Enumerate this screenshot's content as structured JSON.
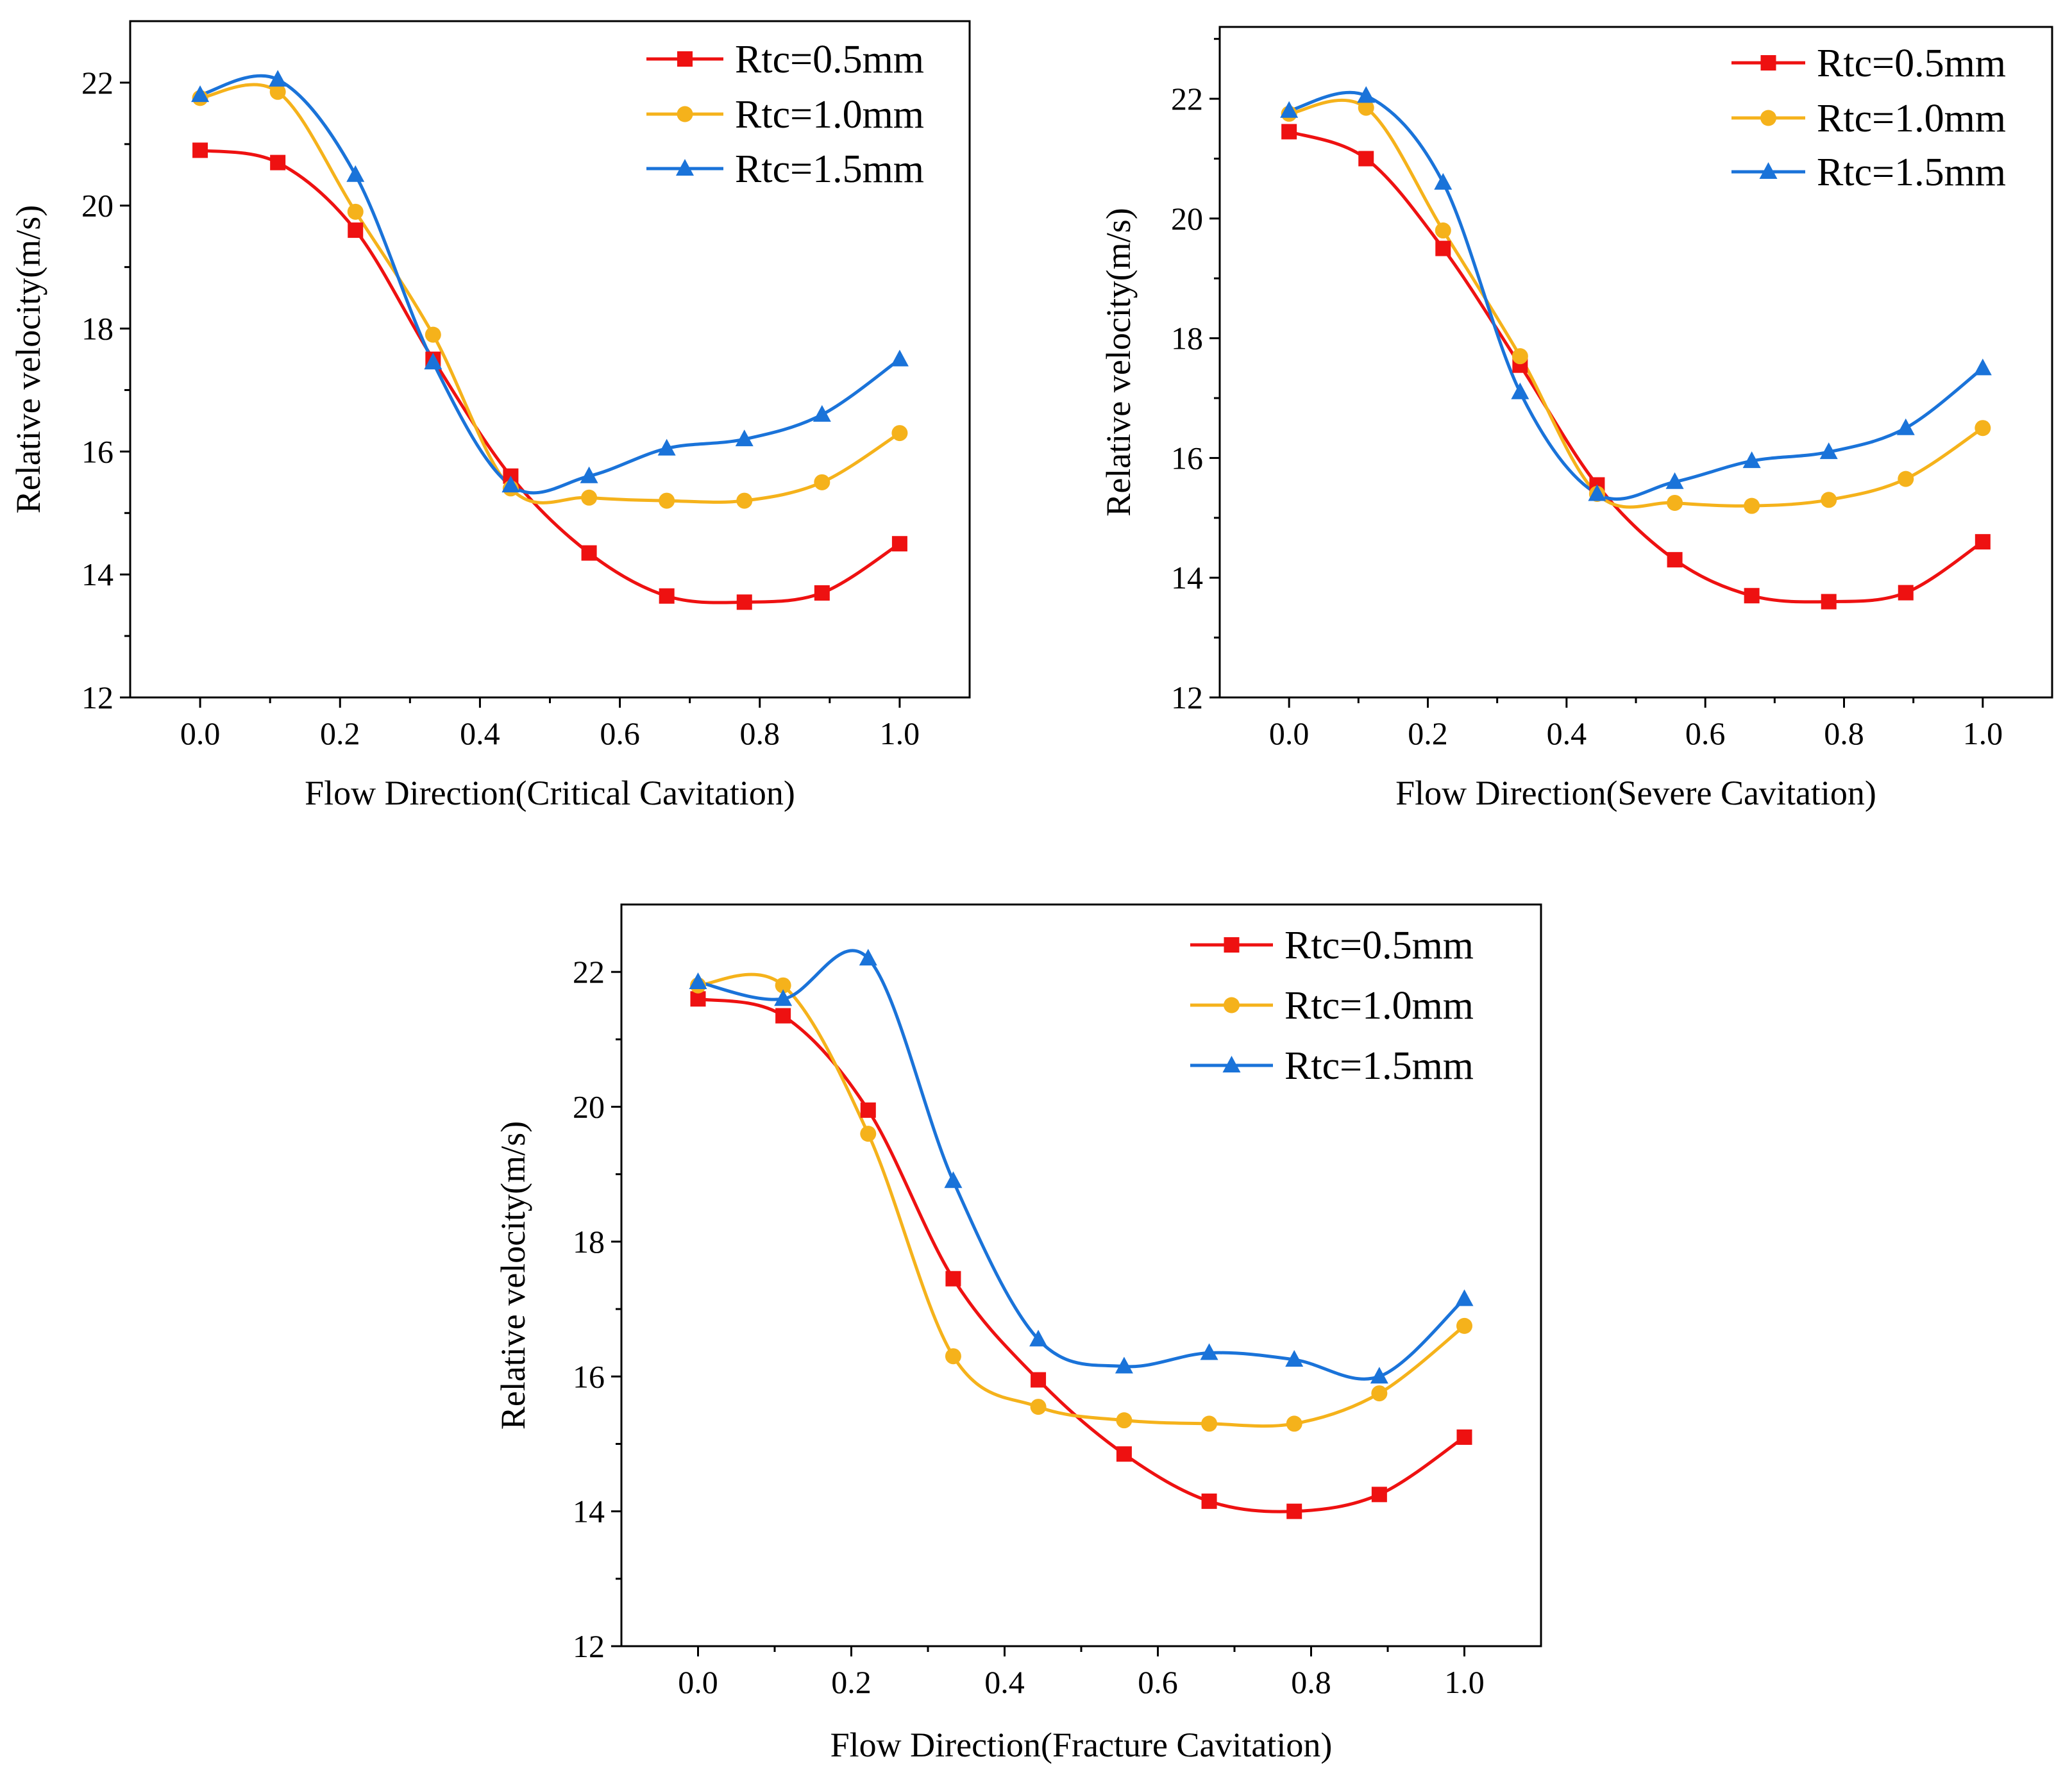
{
  "colors": {
    "Rtc=0.5mm": "#ee1111",
    "Rtc=1.0mm": "#f5b21b",
    "Rtc=1.5mm": "#1a73d9"
  },
  "markers": {
    "Rtc=0.5mm": "square",
    "Rtc=1.0mm": "circle",
    "Rtc=1.5mm": "triangle"
  },
  "chart_data": [
    {
      "type": "line",
      "title": "",
      "xlabel": "Flow Direction(Critical Cavitation)",
      "ylabel": "Relative velocity(m/s)",
      "xlim": [
        -0.1,
        1.1
      ],
      "ylim": [
        12,
        23
      ],
      "xticks": [
        "0.0",
        "0.2",
        "0.4",
        "0.6",
        "0.8",
        "1.0"
      ],
      "yticks": [
        "12",
        "14",
        "16",
        "18",
        "20",
        "22"
      ],
      "legend_position": "top-right",
      "x": [
        0.0,
        0.111,
        0.222,
        0.333,
        0.444,
        0.556,
        0.667,
        0.778,
        0.889,
        1.0
      ],
      "series": [
        {
          "name": "Rtc=0.5mm",
          "values": [
            20.9,
            20.7,
            19.6,
            17.5,
            15.6,
            14.35,
            13.65,
            13.55,
            13.7,
            14.5
          ]
        },
        {
          "name": "Rtc=1.0mm",
          "values": [
            21.75,
            21.85,
            19.9,
            17.9,
            15.4,
            15.25,
            15.2,
            15.2,
            15.5,
            16.3
          ]
        },
        {
          "name": "Rtc=1.5mm",
          "values": [
            21.8,
            22.05,
            20.5,
            17.45,
            15.45,
            15.6,
            16.05,
            16.2,
            16.6,
            17.5
          ]
        }
      ]
    },
    {
      "type": "line",
      "title": "",
      "xlabel": "Flow Direction(Severe Cavitation)",
      "ylabel": "Relative velocity(m/s)",
      "xlim": [
        -0.1,
        1.1
      ],
      "ylim": [
        12,
        23.2
      ],
      "xticks": [
        "0.0",
        "0.2",
        "0.4",
        "0.6",
        "0.8",
        "1.0"
      ],
      "yticks": [
        "12",
        "14",
        "16",
        "18",
        "20",
        "22"
      ],
      "legend_position": "top-right",
      "x": [
        0.0,
        0.111,
        0.222,
        0.333,
        0.444,
        0.556,
        0.667,
        0.778,
        0.889,
        1.0
      ],
      "series": [
        {
          "name": "Rtc=0.5mm",
          "values": [
            21.45,
            21.0,
            19.5,
            17.55,
            15.55,
            14.3,
            13.7,
            13.6,
            13.75,
            14.6
          ]
        },
        {
          "name": "Rtc=1.0mm",
          "values": [
            21.75,
            21.85,
            19.8,
            17.7,
            15.4,
            15.25,
            15.2,
            15.3,
            15.65,
            16.5
          ]
        },
        {
          "name": "Rtc=1.5mm",
          "values": [
            21.8,
            22.05,
            20.6,
            17.1,
            15.4,
            15.6,
            15.95,
            16.1,
            16.5,
            17.5
          ]
        }
      ]
    },
    {
      "type": "line",
      "title": "",
      "xlabel": "Flow Direction(Fracture Cavitation)",
      "ylabel": "Relative velocity(m/s)",
      "xlim": [
        -0.1,
        1.1
      ],
      "ylim": [
        12,
        23
      ],
      "xticks": [
        "0.0",
        "0.2",
        "0.4",
        "0.6",
        "0.8",
        "1.0"
      ],
      "yticks": [
        "12",
        "14",
        "16",
        "18",
        "20",
        "22"
      ],
      "legend_position": "top-right",
      "x": [
        0.0,
        0.111,
        0.222,
        0.333,
        0.444,
        0.556,
        0.667,
        0.778,
        0.889,
        1.0
      ],
      "series": [
        {
          "name": "Rtc=0.5mm",
          "values": [
            21.6,
            21.35,
            19.95,
            17.45,
            15.95,
            14.85,
            14.15,
            14.0,
            14.25,
            15.1
          ]
        },
        {
          "name": "Rtc=1.0mm",
          "values": [
            21.8,
            21.8,
            19.6,
            16.3,
            15.55,
            15.35,
            15.3,
            15.3,
            15.75,
            16.75
          ]
        },
        {
          "name": "Rtc=1.5mm",
          "values": [
            21.85,
            21.6,
            22.2,
            18.9,
            16.55,
            16.15,
            16.35,
            16.25,
            16.0,
            17.15
          ]
        }
      ]
    }
  ]
}
